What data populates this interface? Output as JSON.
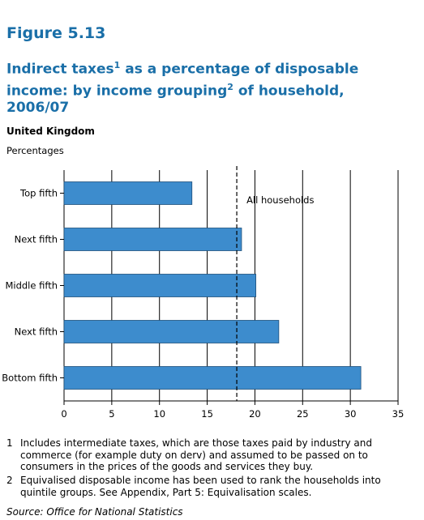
{
  "header": {
    "figure": "Figure 5.13",
    "title_main": "Indirect taxes",
    "title_sup1": "1",
    "title_mid": " as a percentage of disposable income: by income grouping",
    "title_sup2": "2",
    "title_end": " of household, 2006/07",
    "region": "United Kingdom",
    "units": "Percentages"
  },
  "chart_data": {
    "type": "bar",
    "orientation": "horizontal",
    "categories": [
      "Top fifth",
      "Next fifth",
      "Middle fifth",
      "Next fifth",
      "Bottom fifth"
    ],
    "values": [
      13.4,
      18.6,
      20.1,
      22.5,
      31.1
    ],
    "xlim": [
      0,
      35
    ],
    "xticks": [
      0,
      5,
      10,
      15,
      20,
      25,
      30,
      35
    ],
    "reference_line": {
      "value": 18.1,
      "label": "All households"
    },
    "grid": "vertical",
    "bar_color": "#3d8ccd"
  },
  "footnotes": [
    {
      "num": "1",
      "text": "Includes intermediate taxes, which are those taxes paid by industry and commerce (for example duty on derv) and assumed to be passed on to consumers in the prices of the goods and services they buy."
    },
    {
      "num": "2",
      "text": "Equivalised disposable income has been used to rank the households into quintile groups. See Appendix, Part 5: Equivalisation scales."
    }
  ],
  "source": "Source: Office for National Statistics"
}
